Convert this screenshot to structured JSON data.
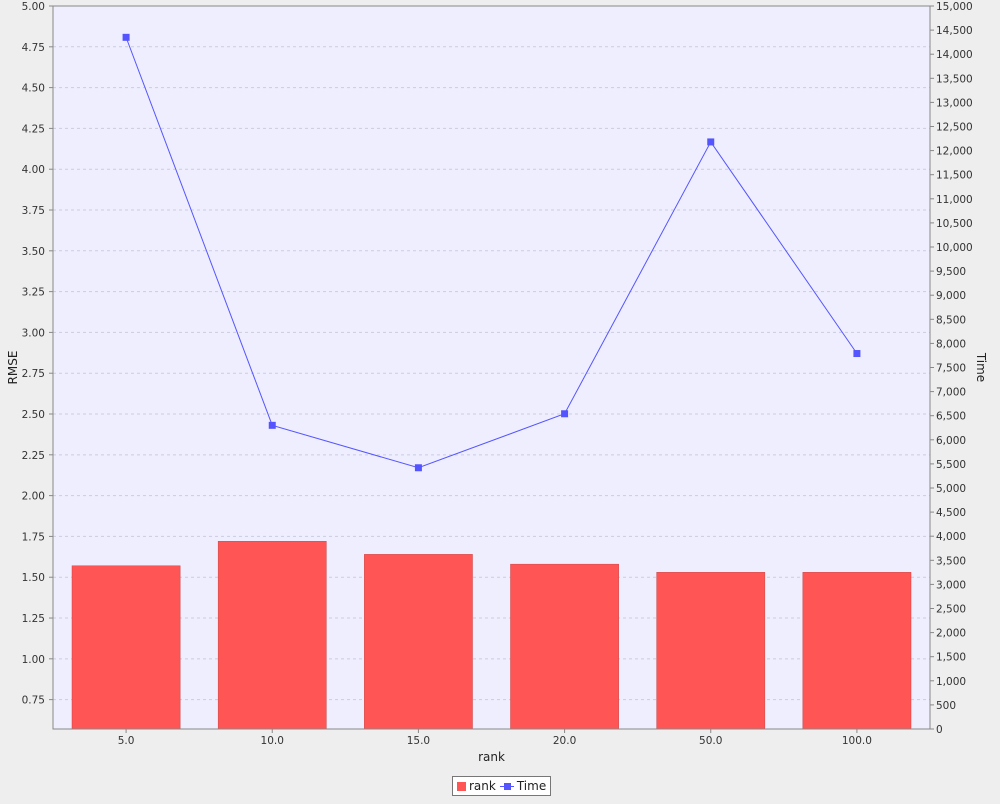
{
  "colors": {
    "plot_background": "#eeeeff",
    "page_background": "#eeeeee",
    "bar_fill": "#ff5555",
    "line_color": "#5555ff",
    "grid_color": "#cccce0"
  },
  "chart_data": {
    "type": "bar",
    "title": "",
    "xlabel": "rank",
    "ylabel": "RMSE",
    "y2label": "Time",
    "categories": [
      "5.0",
      "10.0",
      "15.0",
      "20.0",
      "50.0",
      "100.0"
    ],
    "series": [
      {
        "name": "rank",
        "type": "bar",
        "axis": "left",
        "values": [
          1.57,
          1.72,
          1.64,
          1.58,
          1.53,
          1.53
        ]
      },
      {
        "name": "Time",
        "type": "line",
        "axis": "right",
        "marker": "square",
        "values": [
          14350,
          6300,
          5420,
          6540,
          12180,
          7790
        ]
      }
    ],
    "ylim": [
      0.57,
      5.0
    ],
    "y2lim": [
      0,
      15000
    ],
    "yticks": [
      "0.75",
      "1.00",
      "1.25",
      "1.50",
      "1.75",
      "2.00",
      "2.25",
      "2.50",
      "2.75",
      "3.00",
      "3.25",
      "3.50",
      "3.75",
      "4.00",
      "4.25",
      "4.50",
      "4.75",
      "5.00"
    ],
    "y2ticks": [
      "0",
      "500",
      "1,000",
      "1,500",
      "2,000",
      "2,500",
      "3,000",
      "3,500",
      "4,000",
      "4,500",
      "5,000",
      "5,500",
      "6,000",
      "6,500",
      "7,000",
      "7,500",
      "8,000",
      "8,500",
      "9,000",
      "9,500",
      "10,000",
      "10,500",
      "11,000",
      "11,500",
      "12,000",
      "12,500",
      "13,000",
      "13,500",
      "14,000",
      "14,500",
      "15,000"
    ],
    "grid": true,
    "legend": "bottom-center"
  }
}
